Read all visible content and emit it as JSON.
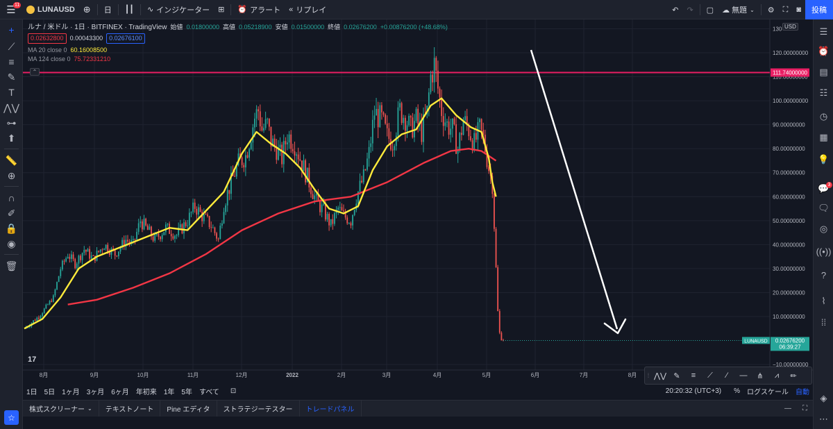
{
  "top_bar": {
    "menu_badge": "11",
    "symbol": "LUNAUSD",
    "add_symbol_icon": "plus-circle-icon",
    "interval": "日",
    "indicators_label": "インジケーター",
    "alert_label": "アラート",
    "replay_label": "リプレイ",
    "layout_name": "無題",
    "publish_label": "投稿"
  },
  "legend": {
    "title": "ルナ / 米ドル · 1日 · BITFINEX · TradingView",
    "open_label": "始値",
    "open": "0.01800000",
    "high_label": "高値",
    "high": "0.05218900",
    "low_label": "安値",
    "low": "0.01500000",
    "close_label": "終値",
    "close": "0.02676200",
    "change": "+0.00876200 (+48.68%)",
    "bid": "0.02632800",
    "spread": "0.00043300",
    "ask": "0.02676100",
    "ma20_label": "MA 20 close 0",
    "ma20_value": "60.16008500",
    "ma124_label": "MA 124 close 0",
    "ma124_value": "75.72331210"
  },
  "chart_data": {
    "type": "candlestick",
    "currency_tag": "USD",
    "y_ticks": [
      "130",
      "120.00000000",
      "110.00000000",
      "100.00000000",
      "90.00000000",
      "80.00000000",
      "70.00000000",
      "60.00000000",
      "50.00000000",
      "40.00000000",
      "30.00000000",
      "20.00000000",
      "10.00000000",
      "−10.00000000"
    ],
    "y_tick_values": [
      130,
      120,
      110,
      100,
      90,
      80,
      70,
      60,
      50,
      40,
      30,
      20,
      10,
      -10
    ],
    "x_ticks": [
      "8月",
      "9月",
      "10月",
      "11月",
      "12月",
      "2022",
      "2月",
      "3月",
      "4月",
      "5月",
      "6月",
      "7月",
      "8月"
    ],
    "horizontal_line": {
      "value": 111.74,
      "label": "111.74000000",
      "color": "#e91e63"
    },
    "price_label": {
      "symbol": "LUNAUSD",
      "value": "0.02676200",
      "countdown": "06:39:27",
      "color": "#26a69a"
    },
    "ma20_color": "#ffeb3b",
    "ma124_color": "#f23645",
    "up_color": "#26a69a",
    "down_color": "#ef5350",
    "arrow_color": "#ffffff",
    "price_path": [
      [
        0,
        5
      ],
      [
        8,
        10
      ],
      [
        16,
        18
      ],
      [
        20,
        30
      ],
      [
        24,
        36
      ],
      [
        28,
        32
      ],
      [
        33,
        38
      ],
      [
        38,
        34
      ],
      [
        44,
        40
      ],
      [
        50,
        36
      ],
      [
        56,
        42
      ],
      [
        60,
        40
      ],
      [
        64,
        50
      ],
      [
        68,
        46
      ],
      [
        72,
        42
      ],
      [
        78,
        47
      ],
      [
        84,
        44
      ],
      [
        90,
        50
      ],
      [
        94,
        56
      ],
      [
        98,
        52
      ],
      [
        103,
        48
      ],
      [
        107,
        42
      ],
      [
        110,
        57
      ],
      [
        114,
        66
      ],
      [
        118,
        74
      ],
      [
        122,
        77
      ],
      [
        127,
        93
      ],
      [
        129,
        96
      ],
      [
        131,
        88
      ],
      [
        134,
        90
      ],
      [
        136,
        83
      ],
      [
        139,
        80
      ],
      [
        142,
        76
      ],
      [
        145,
        86
      ],
      [
        149,
        82
      ],
      [
        153,
        74
      ],
      [
        157,
        66
      ],
      [
        161,
        58
      ],
      [
        165,
        54
      ],
      [
        169,
        48
      ],
      [
        173,
        55
      ],
      [
        176,
        52
      ],
      [
        180,
        50
      ],
      [
        183,
        60
      ],
      [
        187,
        68
      ],
      [
        190,
        78
      ],
      [
        193,
        95
      ],
      [
        197,
        92
      ],
      [
        200,
        85
      ],
      [
        203,
        83
      ],
      [
        207,
        96
      ],
      [
        210,
        93
      ],
      [
        213,
        88
      ],
      [
        216,
        92
      ],
      [
        219,
        87
      ],
      [
        222,
        95
      ],
      [
        224,
        110
      ],
      [
        226,
        115
      ],
      [
        228,
        105
      ],
      [
        230,
        96
      ],
      [
        233,
        90
      ],
      [
        236,
        88
      ],
      [
        239,
        80
      ],
      [
        242,
        92
      ],
      [
        245,
        88
      ],
      [
        248,
        82
      ],
      [
        251,
        88
      ],
      [
        253,
        84
      ],
      [
        256,
        72
      ],
      [
        258,
        65
      ],
      [
        259,
        48
      ],
      [
        260,
        30
      ],
      [
        261,
        12
      ],
      [
        262,
        3
      ],
      [
        263,
        1
      ],
      [
        264,
        0.03
      ]
    ],
    "ma20_path": [
      [
        0,
        5
      ],
      [
        10,
        9
      ],
      [
        20,
        18
      ],
      [
        30,
        30
      ],
      [
        40,
        35
      ],
      [
        50,
        38
      ],
      [
        60,
        41
      ],
      [
        70,
        44
      ],
      [
        80,
        47
      ],
      [
        90,
        46
      ],
      [
        100,
        54
      ],
      [
        110,
        62
      ],
      [
        120,
        78
      ],
      [
        128,
        87
      ],
      [
        136,
        82
      ],
      [
        144,
        78
      ],
      [
        152,
        72
      ],
      [
        160,
        63
      ],
      [
        168,
        55
      ],
      [
        176,
        53
      ],
      [
        184,
        56
      ],
      [
        192,
        71
      ],
      [
        200,
        81
      ],
      [
        208,
        86
      ],
      [
        216,
        88
      ],
      [
        224,
        98
      ],
      [
        230,
        101
      ],
      [
        238,
        94
      ],
      [
        246,
        89
      ],
      [
        252,
        87
      ],
      [
        256,
        76
      ],
      [
        258,
        66
      ],
      [
        260,
        60
      ]
    ],
    "ma124_path": [
      [
        24,
        15
      ],
      [
        40,
        17
      ],
      [
        60,
        22
      ],
      [
        80,
        28
      ],
      [
        100,
        36
      ],
      [
        120,
        46
      ],
      [
        140,
        53
      ],
      [
        160,
        58
      ],
      [
        180,
        60
      ],
      [
        200,
        66
      ],
      [
        220,
        74
      ],
      [
        235,
        79
      ],
      [
        245,
        80
      ],
      [
        252,
        79
      ],
      [
        256,
        77
      ],
      [
        260,
        75
      ]
    ]
  },
  "drawing_toolbar": [
    "pattern-icon",
    "brush-icon",
    "fib-icon",
    "trendline-icon",
    "ray-icon",
    "extended-line-icon",
    "horizontal-line-icon",
    "pitchfork-icon",
    "xabcd-icon",
    "pencil-icon"
  ],
  "range_bar": {
    "ranges": [
      "1日",
      "5日",
      "1ヶ月",
      "3ヶ月",
      "6ヶ月",
      "年初来",
      "1年",
      "5年",
      "すべて"
    ],
    "time": "20:20:32 (UTC+3)",
    "percent": "%",
    "log_scale": "ログスケール",
    "auto": "自動"
  },
  "bottom_tabs": [
    "株式スクリーナー",
    "テキストノート",
    "Pine エディタ",
    "ストラテジーテスター",
    "トレードパネル"
  ]
}
